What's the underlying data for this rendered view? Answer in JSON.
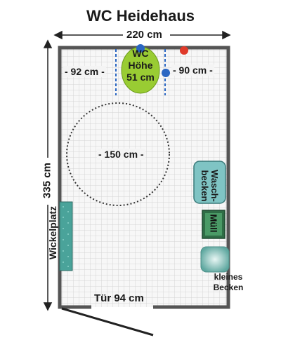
{
  "title": "WC Heidehaus",
  "dimensions": {
    "width": "220 cm",
    "height": "335 cm",
    "left_gap": "- 92 cm -",
    "right_gap": "- 90 cm -",
    "circle": "- 150 cm -",
    "door": "Tür 94 cm"
  },
  "fixtures": {
    "wc_line1": "WC",
    "wc_line2": "Höhe",
    "wc_line3": "51 cm",
    "sink_line1": "Wasch-",
    "sink_line2": "becken",
    "trash": "Müll",
    "changing_table": "Wickelplatz",
    "small_sink_line1": "kleines",
    "small_sink_line2": "Becken"
  },
  "colors": {
    "wall": "#555555",
    "tile": "#d4d4d4",
    "toilet": "#99cc33",
    "sink": "#7fc4c4",
    "trash_bin": "#3d8a5a",
    "changing_table": "#4aa39a",
    "grab_bar": "#2a66c2",
    "red_marker": "#e03a2a"
  }
}
